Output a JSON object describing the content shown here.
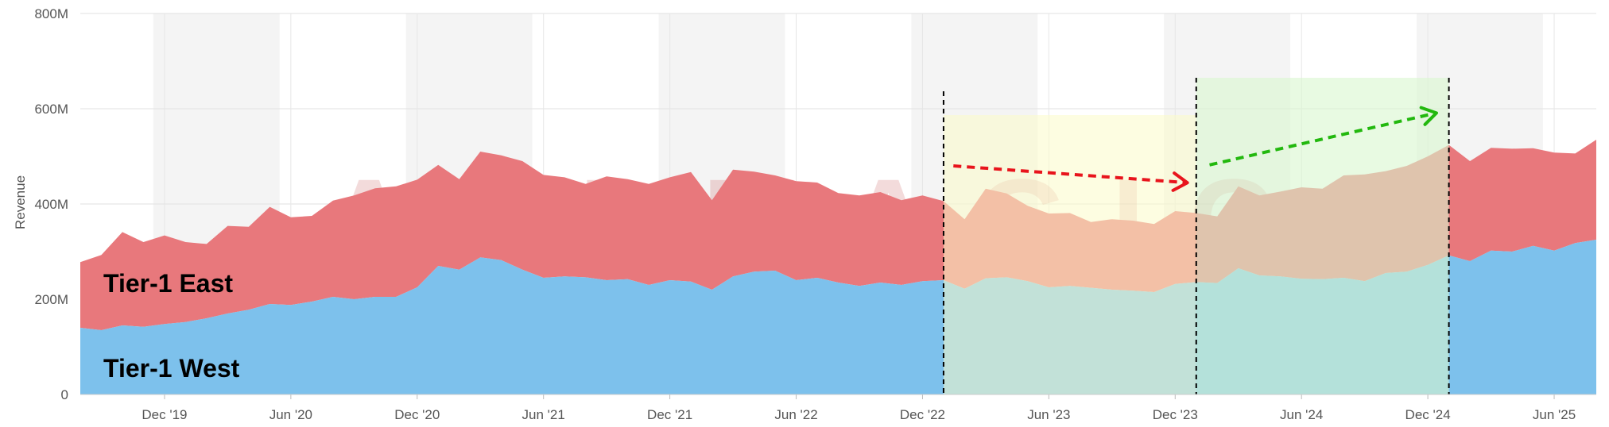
{
  "chart_data": {
    "type": "area",
    "stacked": true,
    "ylabel": "Revenue",
    "ylim": [
      0,
      800000000
    ],
    "y_ticks": [
      {
        "value": 0,
        "label": "0"
      },
      {
        "value": 200000000,
        "label": "200M"
      },
      {
        "value": 400000000,
        "label": "400M"
      },
      {
        "value": 600000000,
        "label": "600M"
      },
      {
        "value": 800000000,
        "label": "800M"
      }
    ],
    "x_months": [
      "2019-08",
      "2019-09",
      "2019-10",
      "2019-11",
      "2019-12",
      "2020-01",
      "2020-02",
      "2020-03",
      "2020-04",
      "2020-05",
      "2020-06",
      "2020-07",
      "2020-08",
      "2020-09",
      "2020-10",
      "2020-11",
      "2020-12",
      "2021-01",
      "2021-02",
      "2021-03",
      "2021-04",
      "2021-05",
      "2021-06",
      "2021-07",
      "2021-08",
      "2021-09",
      "2021-10",
      "2021-11",
      "2021-12",
      "2022-01",
      "2022-02",
      "2022-03",
      "2022-04",
      "2022-05",
      "2022-06",
      "2022-07",
      "2022-08",
      "2022-09",
      "2022-10",
      "2022-11",
      "2022-12",
      "2023-01",
      "2023-02",
      "2023-03",
      "2023-04",
      "2023-05",
      "2023-06",
      "2023-07",
      "2023-08",
      "2023-09",
      "2023-10",
      "2023-11",
      "2023-12",
      "2024-01",
      "2024-02",
      "2024-03",
      "2024-04",
      "2024-05",
      "2024-06",
      "2024-07",
      "2024-08",
      "2024-09",
      "2024-10",
      "2024-11",
      "2024-12",
      "2025-01",
      "2025-02",
      "2025-03",
      "2025-04",
      "2025-05",
      "2025-06",
      "2025-07",
      "2025-08"
    ],
    "x_ticks": [
      {
        "month": "2019-12",
        "label": "Dec '19"
      },
      {
        "month": "2020-06",
        "label": "Jun '20"
      },
      {
        "month": "2020-12",
        "label": "Dec '20"
      },
      {
        "month": "2021-06",
        "label": "Jun '21"
      },
      {
        "month": "2021-12",
        "label": "Dec '21"
      },
      {
        "month": "2022-06",
        "label": "Jun '22"
      },
      {
        "month": "2022-12",
        "label": "Dec '22"
      },
      {
        "month": "2023-06",
        "label": "Jun '23"
      },
      {
        "month": "2023-12",
        "label": "Dec '23"
      },
      {
        "month": "2024-06",
        "label": "Jun '24"
      },
      {
        "month": "2024-12",
        "label": "Dec '24"
      },
      {
        "month": "2025-06",
        "label": "Jun '25"
      }
    ],
    "series": [
      {
        "name": "Tier-1 West",
        "color": "#7dc1ec",
        "values": [
          140,
          135,
          145,
          142,
          148,
          152,
          160,
          170,
          178,
          190,
          188,
          195,
          205,
          200,
          205,
          205,
          225,
          270,
          262,
          288,
          282,
          262,
          245,
          248,
          246,
          240,
          242,
          230,
          240,
          237,
          220,
          248,
          258,
          260,
          240,
          245,
          235,
          228,
          235,
          230,
          238,
          240,
          222,
          244,
          246,
          238,
          225,
          228,
          224,
          220,
          218,
          215,
          232,
          236,
          234,
          265,
          250,
          248,
          243,
          242,
          245,
          238,
          255,
          258,
          272,
          292,
          280,
          302,
          300,
          312,
          302,
          318,
          325
        ]
      },
      {
        "name": "Tier-1 East",
        "color": "#e8787c",
        "values": [
          138,
          158,
          196,
          178,
          186,
          168,
          156,
          184,
          174,
          204,
          184,
          180,
          202,
          218,
          228,
          232,
          226,
          212,
          190,
          222,
          220,
          228,
          216,
          208,
          196,
          218,
          210,
          212,
          216,
          230,
          188,
          224,
          210,
          200,
          208,
          200,
          188,
          190,
          190,
          178,
          180,
          166,
          146,
          188,
          176,
          158,
          155,
          153,
          138,
          148,
          147,
          143,
          153,
          145,
          140,
          172,
          168,
          178,
          192,
          190,
          215,
          224,
          214,
          222,
          228,
          232,
          210,
          216,
          216,
          205,
          206,
          188,
          210
        ]
      }
    ],
    "unit_multiplier": 1000000,
    "shaded_columns": [
      {
        "from": "2019-11-15",
        "to": "2020-05-15"
      },
      {
        "from": "2020-11-15",
        "to": "2021-05-15"
      },
      {
        "from": "2021-11-15",
        "to": "2022-05-15"
      },
      {
        "from": "2022-11-15",
        "to": "2023-05-15"
      },
      {
        "from": "2023-11-15",
        "to": "2024-05-15"
      },
      {
        "from": "2024-11-15",
        "to": "2025-05-15"
      }
    ],
    "highlight_regions": [
      {
        "from": "2023-01",
        "to": "2024-01",
        "color": "#fbfbc8",
        "opacity": 0.55
      },
      {
        "from": "2024-01",
        "to": "2025-01",
        "color": "#d8f7cf",
        "opacity": 0.6
      }
    ],
    "vertical_markers": [
      "2023-01",
      "2024-01",
      "2025-01"
    ],
    "trend_arrows": [
      {
        "color": "#e8141c",
        "from": {
          "month": "2023-01-15",
          "value": 480000000
        },
        "to": {
          "month": "2023-12-15",
          "value": 445000000
        }
      },
      {
        "color": "#22b80e",
        "from": {
          "month": "2024-01-20",
          "value": 482000000
        },
        "to": {
          "month": "2024-12-10",
          "value": 590000000
        }
      }
    ],
    "watermark": "APPMAGIC"
  }
}
